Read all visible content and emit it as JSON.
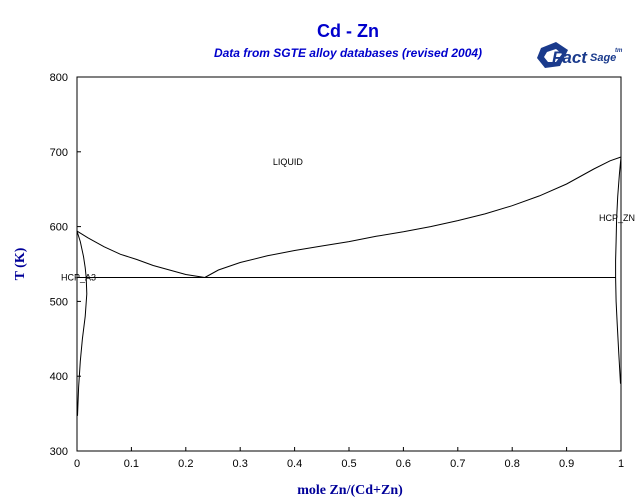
{
  "colors": {
    "title": "#0000cc",
    "axis_label": "#000099",
    "curve": "#000000",
    "logo": "#1a3a8c"
  },
  "logo": {
    "brand": "Fact",
    "suffix": "Sage",
    "trademark": "tm"
  },
  "chart_data": {
    "type": "line",
    "title": "Cd - Zn",
    "subtitle": "Data from SGTE alloy databases (revised 2004)",
    "xlabel": "mole Zn/(Cd+Zn)",
    "ylabel": "T (K)",
    "xlim": [
      0,
      1
    ],
    "ylim": [
      300,
      800
    ],
    "xticks": [
      0,
      0.1,
      0.2,
      0.3,
      0.4,
      0.5,
      0.6,
      0.7,
      0.8,
      0.9,
      1
    ],
    "xtick_labels": [
      "0",
      "0.1",
      "0.2",
      "0.3",
      "0.4",
      "0.5",
      "0.6",
      "0.7",
      "0.8",
      "0.9",
      "1"
    ],
    "yticks": [
      300,
      400,
      500,
      600,
      700,
      800
    ],
    "ytick_labels": [
      "300",
      "400",
      "500",
      "600",
      "700",
      "800"
    ],
    "grid": false,
    "series": [
      {
        "x": [
          0,
          0.02,
          0.05,
          0.08,
          0.11,
          0.14,
          0.17,
          0.2,
          0.235
        ],
        "y": [
          594,
          585,
          573,
          563,
          556,
          548,
          542,
          536,
          532
        ]
      },
      {
        "x": [
          0.235,
          0.26,
          0.3,
          0.35,
          0.4,
          0.45,
          0.5,
          0.55,
          0.6,
          0.65,
          0.7,
          0.75,
          0.8,
          0.85,
          0.9,
          0.95,
          0.98,
          1.0
        ],
        "y": [
          532,
          542,
          552,
          561,
          568,
          574,
          580,
          587,
          593,
          600,
          608,
          617,
          628,
          641,
          657,
          677,
          688,
          693
        ]
      },
      {
        "x": [
          0,
          0.006,
          0.012,
          0.015,
          0.017,
          0.018,
          0.015,
          0.01,
          0.006,
          0.003,
          0.001
        ],
        "y": [
          594,
          580,
          560,
          545,
          532,
          510,
          480,
          450,
          420,
          385,
          347
        ]
      },
      {
        "x": [
          1.0,
          0.997,
          0.994,
          0.992,
          0.991,
          0.99,
          0.99,
          0.991,
          0.993,
          0.996,
          0.999
        ],
        "y": [
          693,
          670,
          640,
          610,
          580,
          555,
          532,
          500,
          470,
          430,
          390
        ]
      },
      {
        "x": [
          0.0,
          0.99
        ],
        "y": [
          532,
          532
        ]
      }
    ],
    "annotations": [
      {
        "text": "LIQUID",
        "x": 0.36,
        "y": 688
      },
      {
        "text": "HCP_A3",
        "x": 0.0,
        "y": 532
      },
      {
        "text": "HCP_ZN",
        "x": 1.0,
        "y": 570
      }
    ]
  }
}
